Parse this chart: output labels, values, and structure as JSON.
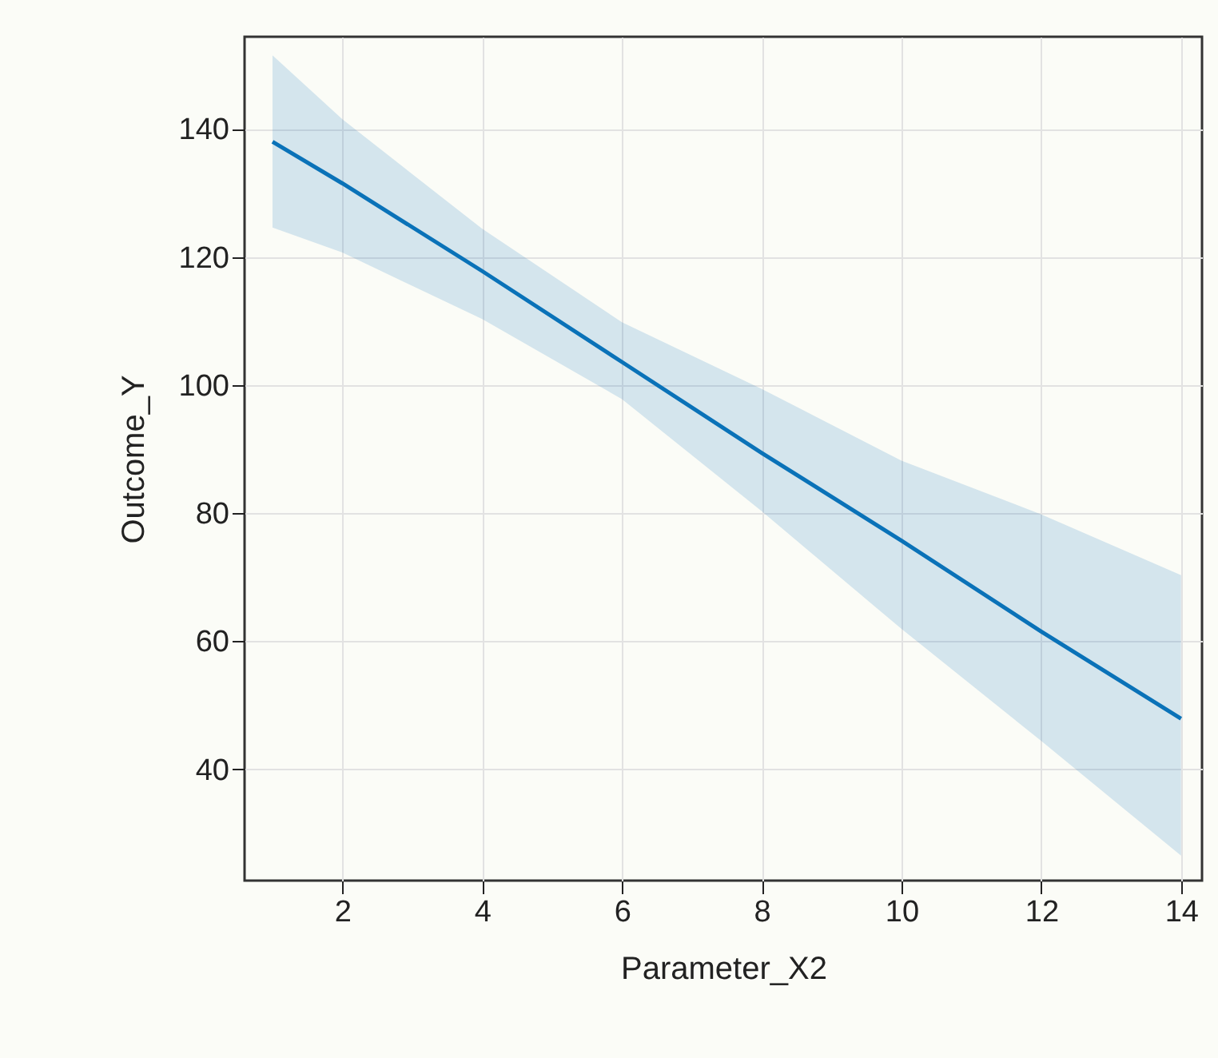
{
  "chart_data": {
    "type": "line",
    "xlabel": "Parameter_X2",
    "ylabel": "Outcome_Y",
    "series": [
      {
        "color": "#0a72b8",
        "x": [
          1,
          2,
          4,
          6,
          8,
          10,
          12,
          14
        ],
        "values": [
          138,
          131.5,
          117.8,
          103.6,
          89.4,
          75.7,
          61.5,
          47.9
        ],
        "lower": [
          124.6,
          120.7,
          110.3,
          97.8,
          80.3,
          61.9,
          44.4,
          26.5
        ],
        "upper": [
          151.5,
          141.5,
          124.4,
          109.8,
          99.4,
          88.2,
          79.8,
          70.3
        ]
      }
    ],
    "xlim": [
      0.6,
      14.3
    ],
    "ylim": [
      22.6,
      154.4
    ],
    "xticks": [
      2,
      4,
      6,
      8,
      10,
      12,
      14
    ],
    "yticks": [
      40,
      60,
      80,
      100,
      120,
      140
    ],
    "grid": true
  }
}
